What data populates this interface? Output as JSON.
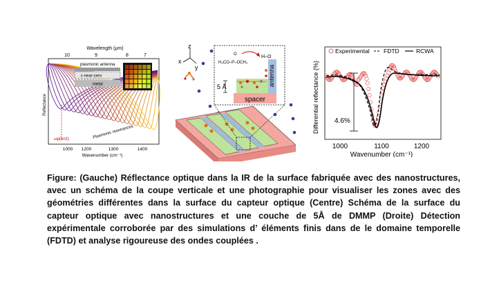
{
  "figure": {
    "left": {
      "top_axis_label": "Wavelength (μm)",
      "top_ticks": [
        "10",
        "9",
        "8",
        "7"
      ],
      "y_label": "Reflectance",
      "x_label": "Wavenumber (cm⁻¹)",
      "x_ticks": [
        "1000",
        "1200",
        "1300",
        "1400"
      ],
      "inset_labels": {
        "antenna": "plasmonic antenna",
        "enz": "ε-near-zero",
        "enz_symbol": "ωₚ",
        "metal": "metal"
      },
      "annotations": {
        "omega": "ωp(enz)",
        "resonances": "Plasmonic resonances"
      }
    },
    "center": {
      "axes": {
        "z": "z",
        "x": "x",
        "y": "y"
      },
      "labels": {
        "five_a": "5 Å",
        "antenna": "antenna",
        "spacer": "spacer"
      }
    },
    "right": {
      "legend": {
        "experimental": "Experimental",
        "fdtd": "FDTD",
        "rcwa": "RCWA"
      },
      "y_label": "Differential reflectance (%)",
      "x_label": "Wavenumber (cm⁻¹)",
      "x_ticks": [
        "1000",
        "1100",
        "1200"
      ],
      "depth_label": "4.6%"
    }
  },
  "caption": "Figure: (Gauche) Réflectance optique dans la IR de la surface fabriquée avec des nanostructures, avec un schéma de la coupe verticale et une photographie pour visualiser les zones avec des géométries différentes dans la surface du capteur optique (Centre) Schéma de la surface du capteur optique avec nanostructures et une couche de 5Å de DMMP (Droite) Détection expérimentale corroborée par des simulations d’ éléments finis dans de le domaine temporelle (FDTD) et analyse rigoureuse des ondes couplées ."
}
